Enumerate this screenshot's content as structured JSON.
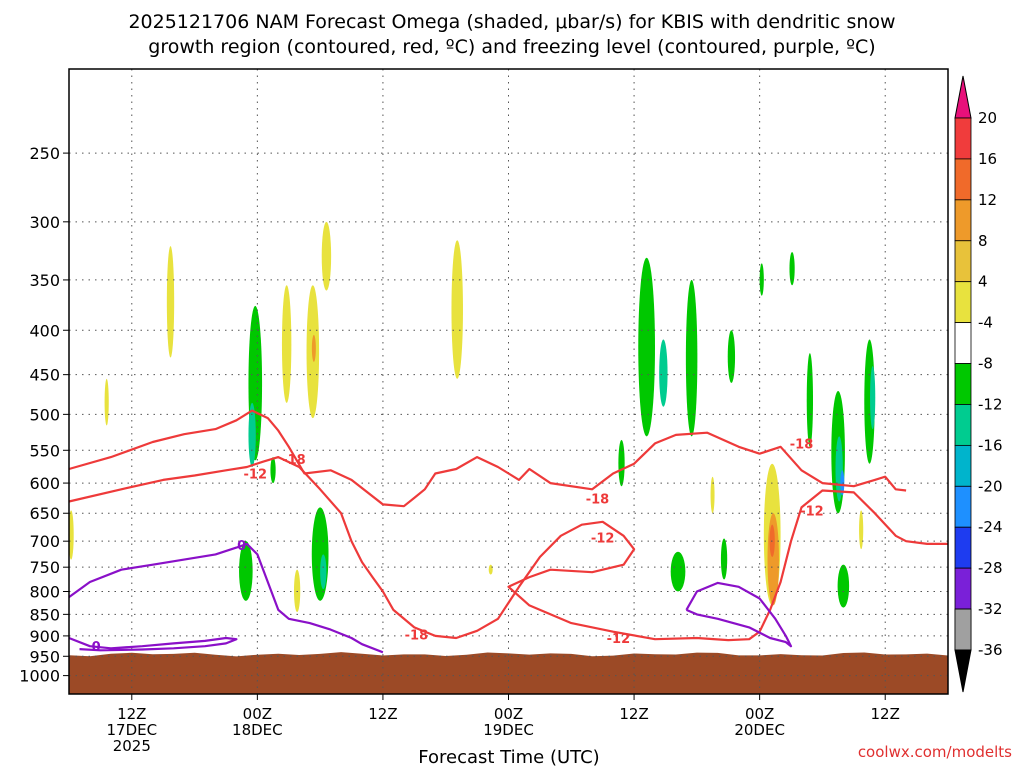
{
  "chart_data": {
    "type": "time-height cross section",
    "title_line1": "2025121706 NAM Forecast Omega (shaded, μbar/s) for KBIS with dendritic snow",
    "title_line2": "growth region (contoured, red, ºC) and freezing level (contoured, purple, ºC)",
    "xlabel": "Forecast Time (UTC)",
    "credit": "coolwx.com/modelts",
    "y_axis": {
      "unit": "hPa",
      "range": [
        200,
        1050
      ],
      "ticks": [
        250,
        300,
        350,
        400,
        450,
        500,
        550,
        600,
        650,
        700,
        750,
        800,
        850,
        900,
        950,
        1000
      ]
    },
    "x_axis": {
      "unit": "forecast hour",
      "range": [
        0,
        84
      ],
      "ticks": [
        {
          "hour": 6,
          "label1": "12Z",
          "label2": "17DEC",
          "label3": "2025"
        },
        {
          "hour": 18,
          "label1": "00Z",
          "label2": "18DEC",
          "label3": ""
        },
        {
          "hour": 30,
          "label1": "12Z",
          "label2": "",
          "label3": ""
        },
        {
          "hour": 42,
          "label1": "00Z",
          "label2": "19DEC",
          "label3": ""
        },
        {
          "hour": 54,
          "label1": "12Z",
          "label2": "",
          "label3": ""
        },
        {
          "hour": 66,
          "label1": "00Z",
          "label2": "20DEC",
          "label3": ""
        },
        {
          "hour": 78,
          "label1": "12Z",
          "label2": "",
          "label3": ""
        }
      ]
    },
    "colorbar": {
      "levels": [
        20,
        16,
        12,
        8,
        4,
        -4,
        -8,
        -12,
        -16,
        -20,
        -24,
        -28,
        -32,
        -36
      ],
      "colors": [
        "#f03c3c",
        "#f06a2a",
        "#ee9a2a",
        "#e8c23a",
        "#e8e23e",
        "#ffffff",
        "#00c800",
        "#00cc90",
        "#00b4cc",
        "#1e90ff",
        "#1e3cf0",
        "#7a20d8",
        "#9010c0",
        "#a0a0a0"
      ],
      "top_color": "#e8107a",
      "bottom_color": "#000000"
    },
    "ground_level_hpa": 945,
    "ground_color": "#9c4a26",
    "shaded_regions": [
      {
        "level": 4,
        "color": "#e8e23e",
        "x": 3.6,
        "p": 485,
        "w": 0.4,
        "h": 60
      },
      {
        "level": 4,
        "color": "#e8e23e",
        "x": 9.7,
        "p": 375,
        "w": 0.7,
        "h": 110
      },
      {
        "level": 4,
        "color": "#e8e23e",
        "x": 0.2,
        "p": 690,
        "w": 0.5,
        "h": 90
      },
      {
        "level": -4,
        "color": "#00c800",
        "x": 17.8,
        "p": 470,
        "w": 1.3,
        "h": 190
      },
      {
        "level": -4,
        "color": "#00c800",
        "x": 16.9,
        "p": 760,
        "w": 1.3,
        "h": 120
      },
      {
        "level": -8,
        "color": "#00cc90",
        "x": 17.5,
        "p": 530,
        "w": 0.7,
        "h": 90
      },
      {
        "level": -4,
        "color": "#00c800",
        "x": 19.5,
        "p": 580,
        "w": 0.5,
        "h": 40
      },
      {
        "level": 4,
        "color": "#e8e23e",
        "x": 20.8,
        "p": 420,
        "w": 0.9,
        "h": 130
      },
      {
        "level": 4,
        "color": "#e8e23e",
        "x": 23.3,
        "p": 430,
        "w": 1.2,
        "h": 150
      },
      {
        "level": 4,
        "color": "#e8e23e",
        "x": 24.6,
        "p": 330,
        "w": 0.9,
        "h": 60
      },
      {
        "level": 8,
        "color": "#ee9a2a",
        "x": 23.4,
        "p": 420,
        "w": 0.25,
        "h": 30
      },
      {
        "level": -4,
        "color": "#00c800",
        "x": 24.0,
        "p": 730,
        "w": 1.6,
        "h": 180
      },
      {
        "level": -8,
        "color": "#00cc90",
        "x": 24.3,
        "p": 760,
        "w": 0.6,
        "h": 70
      },
      {
        "level": 4,
        "color": "#e8e23e",
        "x": 21.8,
        "p": 800,
        "w": 0.6,
        "h": 90
      },
      {
        "level": 4,
        "color": "#e8e23e",
        "x": 37.1,
        "p": 385,
        "w": 1.1,
        "h": 140
      },
      {
        "level": -4,
        "color": "#00c800",
        "x": 55.2,
        "p": 430,
        "w": 1.6,
        "h": 200
      },
      {
        "level": -8,
        "color": "#00cc90",
        "x": 56.8,
        "p": 450,
        "w": 0.8,
        "h": 80
      },
      {
        "level": -4,
        "color": "#00c800",
        "x": 59.5,
        "p": 440,
        "w": 1.1,
        "h": 180
      },
      {
        "level": -4,
        "color": "#00c800",
        "x": 52.8,
        "p": 570,
        "w": 0.6,
        "h": 70
      },
      {
        "level": -4,
        "color": "#00c800",
        "x": 63.3,
        "p": 430,
        "w": 0.7,
        "h": 60
      },
      {
        "level": -4,
        "color": "#00c800",
        "x": 66.2,
        "p": 350,
        "w": 0.4,
        "h": 30
      },
      {
        "level": -4,
        "color": "#00c800",
        "x": 69.1,
        "p": 340,
        "w": 0.5,
        "h": 30
      },
      {
        "level": -4,
        "color": "#00c800",
        "x": 70.8,
        "p": 485,
        "w": 0.6,
        "h": 120
      },
      {
        "level": -4,
        "color": "#00c800",
        "x": 73.5,
        "p": 560,
        "w": 1.3,
        "h": 180
      },
      {
        "level": -8,
        "color": "#00cc90",
        "x": 73.6,
        "p": 580,
        "w": 0.7,
        "h": 100
      },
      {
        "level": -16,
        "color": "#1e90ff",
        "x": 73.9,
        "p": 600,
        "w": 0.3,
        "h": 40
      },
      {
        "level": -4,
        "color": "#00c800",
        "x": 76.5,
        "p": 490,
        "w": 1.0,
        "h": 160
      },
      {
        "level": -8,
        "color": "#00cc90",
        "x": 76.8,
        "p": 480,
        "w": 0.5,
        "h": 80
      },
      {
        "level": -4,
        "color": "#00c800",
        "x": 58.2,
        "p": 760,
        "w": 1.4,
        "h": 80
      },
      {
        "level": -4,
        "color": "#00c800",
        "x": 62.6,
        "p": 735,
        "w": 0.6,
        "h": 80
      },
      {
        "level": -4,
        "color": "#00c800",
        "x": 74.0,
        "p": 790,
        "w": 1.1,
        "h": 90
      },
      {
        "level": 4,
        "color": "#e8e23e",
        "x": 67.2,
        "p": 700,
        "w": 1.6,
        "h": 260
      },
      {
        "level": 8,
        "color": "#ee9a2a",
        "x": 67.3,
        "p": 740,
        "w": 1.1,
        "h": 180
      },
      {
        "level": 12,
        "color": "#f06a2a",
        "x": 67.2,
        "p": 700,
        "w": 0.5,
        "h": 60
      },
      {
        "level": 4,
        "color": "#e8e23e",
        "x": 61.5,
        "p": 620,
        "w": 0.3,
        "h": 60
      },
      {
        "level": 4,
        "color": "#e8e23e",
        "x": 75.7,
        "p": 680,
        "w": 0.4,
        "h": 70
      },
      {
        "level": 4,
        "color": "#e8e23e",
        "x": 40.3,
        "p": 755,
        "w": 0.15,
        "h": 20
      }
    ],
    "contours": [
      {
        "name": "dgz-upper",
        "value": -18,
        "color": "#ee3a3a",
        "points": [
          [
            0,
            578
          ],
          [
            4,
            560
          ],
          [
            8,
            538
          ],
          [
            11,
            527
          ],
          [
            14,
            520
          ],
          [
            16,
            508
          ],
          [
            17.5,
            495
          ],
          [
            19,
            505
          ],
          [
            20,
            522
          ],
          [
            21,
            545
          ],
          [
            22.5,
            585
          ],
          [
            25,
            580
          ],
          [
            27,
            595
          ],
          [
            30,
            635
          ],
          [
            32,
            638
          ],
          [
            33,
            624
          ],
          [
            34,
            610
          ],
          [
            35,
            585
          ],
          [
            37,
            578
          ],
          [
            39,
            560
          ],
          [
            41,
            575
          ],
          [
            43,
            595
          ],
          [
            44,
            578
          ],
          [
            46,
            600
          ],
          [
            50,
            610
          ],
          [
            52,
            585
          ],
          [
            54,
            570
          ],
          [
            56,
            540
          ],
          [
            58,
            528
          ],
          [
            61,
            525
          ],
          [
            64,
            545
          ],
          [
            66,
            555
          ],
          [
            68,
            545
          ],
          [
            70,
            580
          ],
          [
            72,
            600
          ],
          [
            75,
            605
          ],
          [
            77,
            595
          ],
          [
            78,
            590
          ],
          [
            79,
            610
          ],
          [
            80,
            612
          ]
        ]
      },
      {
        "name": "dgz-lower",
        "value": -12,
        "color": "#ee3a3a",
        "points": [
          [
            0,
            630
          ],
          [
            5,
            610
          ],
          [
            9,
            595
          ],
          [
            12,
            588
          ],
          [
            15,
            580
          ],
          [
            17,
            575
          ],
          [
            18.5,
            567
          ],
          [
            20,
            560
          ],
          [
            22,
            575
          ],
          [
            24,
            610
          ],
          [
            26,
            650
          ],
          [
            27,
            700
          ],
          [
            28,
            740
          ],
          [
            29,
            770
          ],
          [
            30,
            800
          ],
          [
            31,
            840
          ],
          [
            33,
            880
          ],
          [
            35,
            900
          ],
          [
            37,
            905
          ],
          [
            39,
            888
          ],
          [
            41,
            860
          ],
          [
            43,
            790
          ],
          [
            45,
            730
          ],
          [
            47,
            690
          ],
          [
            49,
            670
          ],
          [
            51,
            665
          ],
          [
            53,
            690
          ],
          [
            54,
            715
          ],
          [
            53,
            745
          ],
          [
            50,
            760
          ],
          [
            46,
            755
          ],
          [
            44,
            770
          ],
          [
            42,
            790
          ],
          [
            44,
            830
          ],
          [
            48,
            870
          ],
          [
            52,
            890
          ],
          [
            56,
            908
          ],
          [
            60,
            905
          ],
          [
            63,
            910
          ],
          [
            65,
            908
          ],
          [
            66,
            890
          ],
          [
            67,
            840
          ],
          [
            68,
            780
          ],
          [
            69,
            700
          ],
          [
            70,
            640
          ],
          [
            72,
            612
          ],
          [
            75,
            615
          ],
          [
            77,
            650
          ],
          [
            79,
            690
          ],
          [
            80,
            700
          ],
          [
            82,
            705
          ],
          [
            84,
            705
          ]
        ]
      },
      {
        "name": "freezing-level",
        "value": 0,
        "color": "#8a10c8",
        "points": [
          [
            0,
            812
          ],
          [
            2,
            780
          ],
          [
            5,
            755
          ],
          [
            8,
            745
          ],
          [
            11,
            735
          ],
          [
            14,
            725
          ],
          [
            16,
            712
          ],
          [
            17,
            705
          ],
          [
            18,
            725
          ],
          [
            19,
            780
          ],
          [
            20,
            840
          ],
          [
            21,
            860
          ],
          [
            23,
            870
          ],
          [
            25,
            885
          ],
          [
            27,
            905
          ],
          [
            28,
            920
          ],
          [
            30,
            940
          ]
        ]
      },
      {
        "name": "freezing-level-2",
        "value": 0,
        "color": "#8a10c8",
        "points": [
          [
            59,
            840
          ],
          [
            60,
            800
          ],
          [
            62,
            782
          ],
          [
            64,
            790
          ],
          [
            66,
            815
          ],
          [
            67.5,
            860
          ],
          [
            68.5,
            900
          ],
          [
            69,
            925
          ],
          [
            68.5,
            915
          ],
          [
            67,
            905
          ],
          [
            65,
            880
          ],
          [
            62,
            860
          ],
          [
            60,
            850
          ],
          [
            59,
            840
          ]
        ]
      },
      {
        "name": "freezing-level-3",
        "value": 0,
        "color": "#8a10c8",
        "points": [
          [
            0,
            905
          ],
          [
            2,
            925
          ],
          [
            4,
            930
          ],
          [
            7,
            925
          ],
          [
            10,
            918
          ],
          [
            13,
            912
          ],
          [
            15,
            905
          ],
          [
            16,
            908
          ],
          [
            15,
            918
          ],
          [
            13,
            925
          ],
          [
            10,
            930
          ],
          [
            7,
            933
          ],
          [
            3,
            935
          ],
          [
            1,
            932
          ]
        ]
      }
    ],
    "contour_labels": [
      {
        "text": "-18",
        "color": "red",
        "x": 21.5,
        "p": 563
      },
      {
        "text": "-12",
        "color": "red",
        "x": 17.8,
        "p": 585
      },
      {
        "text": "-18",
        "color": "red",
        "x": 33.2,
        "p": 897
      },
      {
        "text": "-12",
        "color": "red",
        "x": 52.5,
        "p": 905
      },
      {
        "text": "-18",
        "color": "red",
        "x": 50.5,
        "p": 625
      },
      {
        "text": "-12",
        "color": "red",
        "x": 51.0,
        "p": 693
      },
      {
        "text": "-18",
        "color": "red",
        "x": 70.0,
        "p": 540
      },
      {
        "text": "-12",
        "color": "red",
        "x": 71.0,
        "p": 645
      },
      {
        "text": "0",
        "color": "purple",
        "x": 16.5,
        "p": 707
      },
      {
        "text": "0",
        "color": "purple",
        "x": 2.6,
        "p": 925
      }
    ]
  }
}
